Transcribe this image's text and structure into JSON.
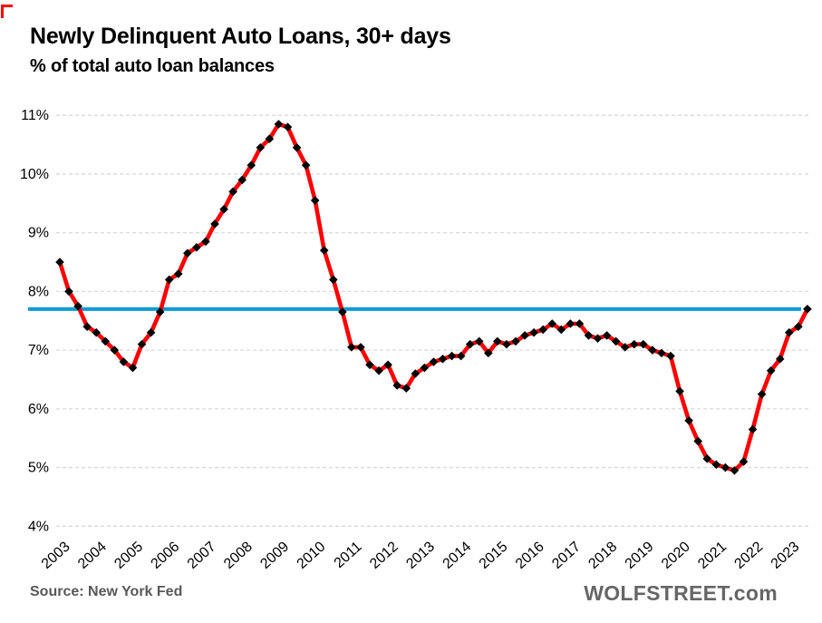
{
  "chart_data": {
    "type": "line",
    "title": "Newly Delinquent Auto Loans, 30+ days",
    "subtitle": "% of total auto loan balances",
    "source": "Source: New York Fed",
    "watermark": "WOLFSTREET.com",
    "frequency": "quarterly",
    "x_start": "2003Q1",
    "x_end": "2023Q3",
    "x_tick_labels": [
      "2003",
      "2004",
      "2005",
      "2006",
      "2007",
      "2008",
      "2009",
      "2010",
      "2011",
      "2012",
      "2013",
      "2014",
      "2015",
      "2016",
      "2017",
      "2018",
      "2019",
      "2020",
      "2021",
      "2022",
      "2023"
    ],
    "y_tick_labels": [
      "11%",
      "10%",
      "9%",
      "8%",
      "7%",
      "6%",
      "5%",
      "4%"
    ],
    "ylim": [
      4,
      11
    ],
    "grid": "horizontal-dashed",
    "series": [
      {
        "name": "Newly delinquent auto loans, 30+ days, % of total auto loan balances",
        "color": "#FF0000",
        "marker": "diamond",
        "marker_color": "#000000",
        "values": [
          8.5,
          8.0,
          7.75,
          7.4,
          7.3,
          7.15,
          7.0,
          6.8,
          6.7,
          7.1,
          7.3,
          7.65,
          8.2,
          8.3,
          8.65,
          8.75,
          8.85,
          9.15,
          9.4,
          9.7,
          9.9,
          10.15,
          10.45,
          10.6,
          10.85,
          10.8,
          10.45,
          10.15,
          9.55,
          8.7,
          8.2,
          7.65,
          7.05,
          7.05,
          6.75,
          6.65,
          6.75,
          6.4,
          6.35,
          6.6,
          6.7,
          6.8,
          6.85,
          6.9,
          6.9,
          7.1,
          7.15,
          6.95,
          7.15,
          7.1,
          7.15,
          7.25,
          7.3,
          7.35,
          7.45,
          7.35,
          7.45,
          7.45,
          7.25,
          7.2,
          7.25,
          7.15,
          7.05,
          7.1,
          7.1,
          7.0,
          6.95,
          6.9,
          6.3,
          5.8,
          5.45,
          5.15,
          5.05,
          5.0,
          4.95,
          5.1,
          5.65,
          6.25,
          6.65,
          6.85,
          7.3,
          7.4,
          7.7
        ]
      }
    ],
    "reference_line": {
      "value": 7.7,
      "color": "#109BD7"
    },
    "colors": {
      "grid": "#D9D9D9",
      "axis_text": "#000000",
      "footer_text": "#595959"
    }
  }
}
